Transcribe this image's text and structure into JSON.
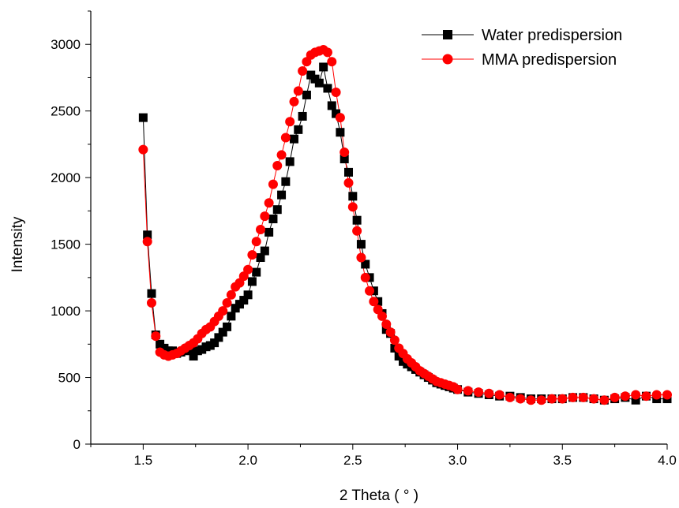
{
  "chart_data": {
    "type": "line",
    "title": "",
    "xlabel": "2 Theta ( ° )",
    "ylabel": "Intensity",
    "xlim": [
      1.25,
      4.0
    ],
    "ylim": [
      0,
      3250
    ],
    "x_ticks": [
      1.5,
      2.0,
      2.5,
      3.0,
      3.5,
      4.0
    ],
    "x_tick_labels": [
      "1.5",
      "2.0",
      "2.5",
      "3.0",
      "3.5",
      "4.0"
    ],
    "y_ticks": [
      0,
      500,
      1000,
      1500,
      2000,
      2500,
      3000
    ],
    "y_tick_labels": [
      "0",
      "500",
      "1000",
      "1500",
      "2000",
      "2500",
      "3000"
    ],
    "grid": false,
    "legend_position": "top-right",
    "colors": {
      "water": "#000000",
      "mma": "#ff0000"
    },
    "series": [
      {
        "name": "Water predispersion",
        "marker": "square",
        "color": "#000000",
        "x": [
          1.5,
          1.52,
          1.54,
          1.56,
          1.58,
          1.6,
          1.62,
          1.64,
          1.66,
          1.68,
          1.7,
          1.72,
          1.74,
          1.76,
          1.78,
          1.8,
          1.82,
          1.84,
          1.86,
          1.88,
          1.9,
          1.92,
          1.94,
          1.96,
          1.98,
          2.0,
          2.02,
          2.04,
          2.06,
          2.08,
          2.1,
          2.12,
          2.14,
          2.16,
          2.18,
          2.2,
          2.22,
          2.24,
          2.26,
          2.28,
          2.3,
          2.32,
          2.34,
          2.36,
          2.38,
          2.4,
          2.42,
          2.44,
          2.46,
          2.48,
          2.5,
          2.52,
          2.54,
          2.56,
          2.58,
          2.6,
          2.62,
          2.64,
          2.66,
          2.68,
          2.7,
          2.72,
          2.74,
          2.76,
          2.78,
          2.8,
          2.82,
          2.84,
          2.86,
          2.88,
          2.9,
          2.92,
          2.94,
          2.96,
          2.98,
          3.0,
          3.05,
          3.1,
          3.15,
          3.2,
          3.25,
          3.3,
          3.35,
          3.4,
          3.45,
          3.5,
          3.55,
          3.6,
          3.65,
          3.7,
          3.75,
          3.8,
          3.85,
          3.9,
          3.95,
          4.0
        ],
        "y": [
          2450,
          1570,
          1130,
          820,
          750,
          720,
          700,
          700,
          680,
          690,
          700,
          720,
          660,
          700,
          710,
          730,
          740,
          760,
          800,
          840,
          880,
          960,
          1020,
          1050,
          1080,
          1120,
          1220,
          1290,
          1400,
          1450,
          1590,
          1690,
          1760,
          1870,
          1970,
          2120,
          2290,
          2360,
          2460,
          2620,
          2770,
          2740,
          2710,
          2830,
          2670,
          2540,
          2480,
          2340,
          2140,
          2040,
          1860,
          1680,
          1500,
          1350,
          1250,
          1150,
          1070,
          980,
          860,
          830,
          720,
          660,
          620,
          600,
          580,
          560,
          540,
          520,
          500,
          480,
          460,
          450,
          440,
          430,
          420,
          410,
          390,
          380,
          370,
          360,
          360,
          350,
          340,
          340,
          340,
          340,
          350,
          350,
          340,
          330,
          340,
          350,
          330,
          360,
          340,
          340
        ]
      },
      {
        "name": "MMA predispersion",
        "marker": "circle",
        "color": "#ff0000",
        "x": [
          1.5,
          1.52,
          1.54,
          1.56,
          1.58,
          1.6,
          1.62,
          1.64,
          1.66,
          1.68,
          1.7,
          1.72,
          1.74,
          1.76,
          1.78,
          1.8,
          1.82,
          1.84,
          1.86,
          1.88,
          1.9,
          1.92,
          1.94,
          1.96,
          1.98,
          2.0,
          2.02,
          2.04,
          2.06,
          2.08,
          2.1,
          2.12,
          2.14,
          2.16,
          2.18,
          2.2,
          2.22,
          2.24,
          2.26,
          2.28,
          2.3,
          2.32,
          2.34,
          2.36,
          2.38,
          2.4,
          2.42,
          2.44,
          2.46,
          2.48,
          2.5,
          2.52,
          2.54,
          2.56,
          2.58,
          2.6,
          2.62,
          2.64,
          2.66,
          2.68,
          2.7,
          2.72,
          2.74,
          2.76,
          2.78,
          2.8,
          2.82,
          2.84,
          2.86,
          2.88,
          2.9,
          2.92,
          2.94,
          2.96,
          2.98,
          3.0,
          3.05,
          3.1,
          3.15,
          3.2,
          3.25,
          3.3,
          3.35,
          3.4,
          3.45,
          3.5,
          3.55,
          3.6,
          3.65,
          3.7,
          3.75,
          3.8,
          3.85,
          3.9,
          3.95,
          4.0
        ],
        "y": [
          2210,
          1520,
          1060,
          810,
          690,
          670,
          660,
          670,
          680,
          700,
          720,
          740,
          760,
          790,
          830,
          860,
          880,
          920,
          960,
          1000,
          1060,
          1120,
          1180,
          1210,
          1260,
          1310,
          1420,
          1520,
          1610,
          1710,
          1810,
          1950,
          2090,
          2170,
          2300,
          2420,
          2570,
          2650,
          2800,
          2870,
          2920,
          2940,
          2950,
          2960,
          2940,
          2870,
          2640,
          2450,
          2190,
          1960,
          1780,
          1600,
          1400,
          1250,
          1150,
          1070,
          1010,
          960,
          900,
          840,
          780,
          720,
          680,
          640,
          610,
          580,
          550,
          530,
          510,
          490,
          470,
          460,
          450,
          440,
          430,
          410,
          400,
          390,
          380,
          370,
          350,
          340,
          330,
          330,
          340,
          340,
          350,
          350,
          340,
          330,
          350,
          360,
          370,
          360,
          370,
          370
        ]
      }
    ]
  }
}
